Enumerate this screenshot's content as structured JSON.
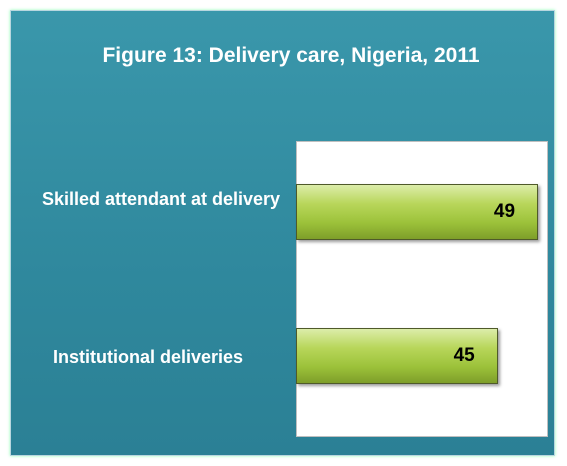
{
  "chart_data": {
    "type": "barh",
    "title": "Figure 13: Delivery care, Nigeria, 2011",
    "categories": [
      "Skilled attendant at delivery",
      "Institutional deliveries"
    ],
    "values": [
      49,
      45
    ],
    "color": "#a6c93e",
    "xlim": [
      25,
      50
    ]
  }
}
